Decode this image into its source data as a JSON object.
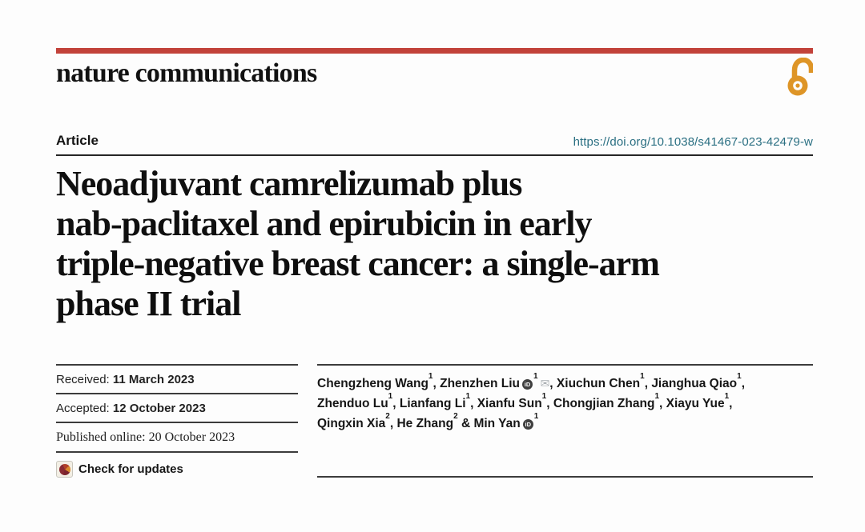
{
  "masthead": {
    "journal_title": "nature communications",
    "brand_bar_color": "#c2423a",
    "open_access_icon": "open-padlock",
    "open_access_color": "#de9527"
  },
  "header": {
    "section_label": "Article",
    "doi_link": "https://doi.org/10.1038/s41467-023-42479-w",
    "doi_color": "#2a6f82",
    "title_lines": [
      "Neoadjuvant camrelizumab plus",
      "nab-paclitaxel and epirubicin in early",
      "triple-negative breast cancer: a single-arm",
      "phase II trial"
    ]
  },
  "history": {
    "rows": [
      {
        "label": "Received:",
        "value": "11 March 2023",
        "serif": false
      },
      {
        "label": "Accepted:",
        "value": "12 October 2023",
        "serif": false
      },
      {
        "label": "Published online:",
        "value": "20 October 2023",
        "serif": true
      }
    ]
  },
  "updates": {
    "label": "Check for updates",
    "icon": "crossmark-icon"
  },
  "authors": {
    "orcid_icon_label": "iD",
    "envelope_icon": "✉",
    "lines": [
      [
        {
          "name": "Chengzheng Wang",
          "sup": "1",
          "sep": ", "
        },
        {
          "name": "Zhenzhen Liu",
          "orcid": true,
          "sup": "1",
          "mail": true,
          "sep": ", "
        },
        {
          "name": "Xiuchun Chen",
          "sup": "1",
          "sep": ", "
        },
        {
          "name": "Jianghua Qiao",
          "sup": "1",
          "sep": ","
        }
      ],
      [
        {
          "name": "Zhenduo Lu",
          "sup": "1",
          "sep": ", "
        },
        {
          "name": "Lianfang Li",
          "sup": "1",
          "sep": ", "
        },
        {
          "name": "Xianfu Sun",
          "sup": "1",
          "sep": ", "
        },
        {
          "name": "Chongjian Zhang",
          "sup": "1",
          "sep": ", "
        },
        {
          "name": "Xiayu Yue",
          "sup": "1",
          "sep": ","
        }
      ],
      [
        {
          "name": "Qingxin Xia",
          "sup": "2",
          "sep": ", "
        },
        {
          "name": "He Zhang",
          "sup": "2",
          "sep": " & "
        },
        {
          "name": "Min Yan",
          "orcid": true,
          "sup": "1",
          "sep": ""
        }
      ]
    ]
  }
}
